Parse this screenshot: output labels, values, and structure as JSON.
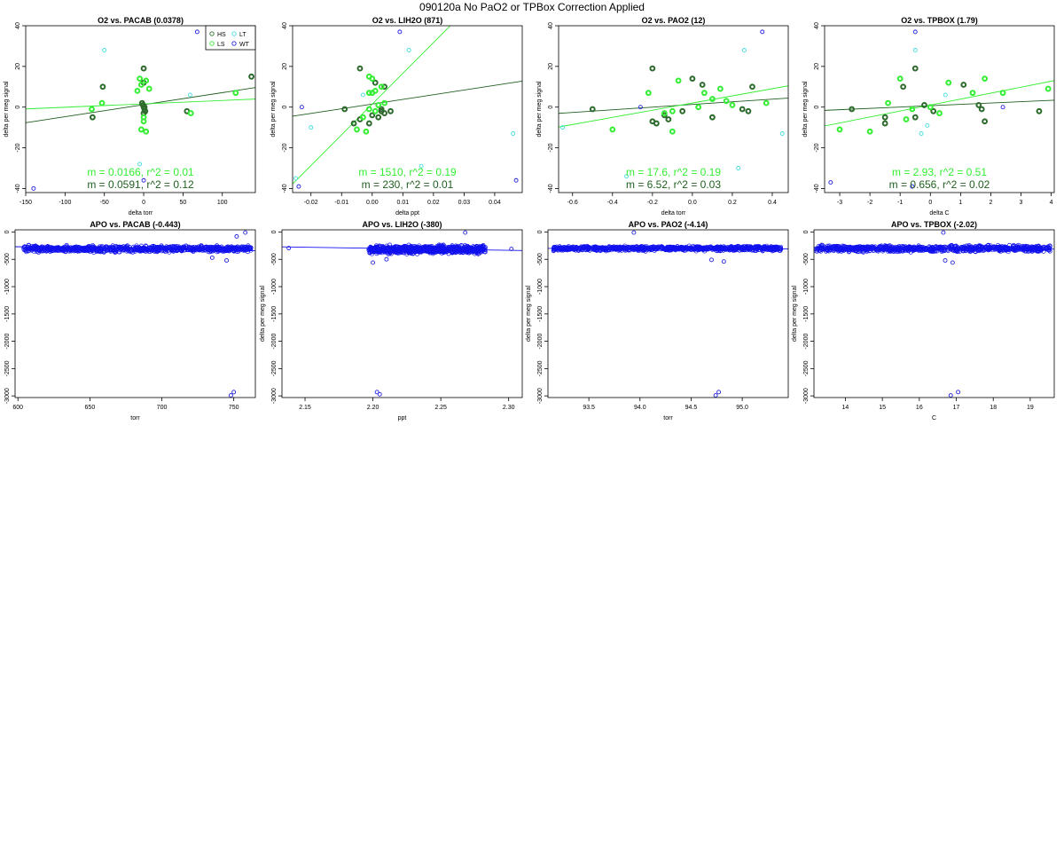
{
  "page": {
    "title": "090120a   No PaO2 or TPBox Correction Applied"
  },
  "colors": {
    "HS": "#2d6b2d",
    "LS": "#33ee33",
    "LT": "#44dddd",
    "WT": "#2222dd",
    "fit_dark": "#1f5f1f",
    "fit_light": "#33ee33",
    "apo": "#1111ee"
  },
  "legend": [
    {
      "label": "HS",
      "color_key": "HS",
      "position": "top-left"
    },
    {
      "label": "LT",
      "color_key": "LT",
      "position": "top-right"
    },
    {
      "label": "LS",
      "color_key": "LS",
      "position": "bottom-left"
    },
    {
      "label": "WT",
      "color_key": "WT",
      "position": "bottom-right"
    }
  ],
  "chart_data": [
    {
      "type": "scatter",
      "title": "O2 vs. PACAB (0.0378)",
      "xlabel": "delta torr",
      "ylabel": "delta per meg signal",
      "xlim": [
        -150,
        142
      ],
      "ylim": [
        -42,
        40
      ],
      "grid": false,
      "legend": "top-right",
      "xticks": [
        -150,
        -100,
        -50,
        0,
        50,
        100
      ],
      "yticks": [
        -40,
        -20,
        0,
        20,
        40
      ],
      "fits": [
        {
          "slope": 0.0591,
          "intercept": 1.2,
          "color_key": "fit_dark",
          "label": "m = 0.0591, r^2 = 0.12"
        },
        {
          "slope": 0.0166,
          "intercept": 1.6,
          "color_key": "fit_light",
          "label": "m = 0.0166, r^2 = 0.01"
        }
      ],
      "series": [
        {
          "key": "HS",
          "bold": true,
          "points": [
            [
              -65,
              -5
            ],
            [
              -52,
              10
            ],
            [
              0,
              19
            ],
            [
              0,
              12
            ],
            [
              -2,
              2
            ],
            [
              0,
              0
            ],
            [
              1,
              -1
            ],
            [
              0,
              -3
            ],
            [
              2,
              -2
            ],
            [
              55,
              -2
            ],
            [
              137,
              15
            ],
            [
              -1,
              1
            ],
            [
              1,
              0
            ]
          ]
        },
        {
          "key": "LS",
          "bold": true,
          "points": [
            [
              -66,
              -1
            ],
            [
              -5,
              14
            ],
            [
              3,
              13
            ],
            [
              7,
              9
            ],
            [
              -8,
              8
            ],
            [
              0,
              -5
            ],
            [
              0,
              -7
            ],
            [
              -3,
              -11
            ],
            [
              3,
              -12
            ],
            [
              60,
              -3
            ],
            [
              117,
              7
            ],
            [
              -53,
              2
            ],
            [
              -3,
              11
            ]
          ]
        },
        {
          "key": "LT",
          "bold": false,
          "points": [
            [
              -50,
              28
            ],
            [
              59,
              6
            ],
            [
              -5,
              -28
            ]
          ]
        },
        {
          "key": "WT",
          "bold": false,
          "points": [
            [
              -140,
              -40
            ],
            [
              68,
              37
            ],
            [
              0,
              -36
            ]
          ]
        }
      ]
    },
    {
      "type": "scatter",
      "title": "O2 vs. LIH2O (871)",
      "xlabel": "delta ppt",
      "ylabel": "delta per meg signal",
      "xlim": [
        -0.026,
        0.049
      ],
      "ylim": [
        -42,
        40
      ],
      "grid": false,
      "xticks": [
        -0.02,
        -0.01,
        0.0,
        0.01,
        0.02,
        0.03,
        0.04
      ],
      "yticks": [
        -40,
        -20,
        0,
        20,
        40
      ],
      "fits": [
        {
          "slope": 230,
          "intercept": 1.5,
          "color_key": "fit_dark",
          "label": "m = 230, r^2 = 0.01"
        },
        {
          "slope": 1510,
          "intercept": 1.5,
          "color_key": "fit_light",
          "label": "m = 1510, r^2 = 0.19"
        }
      ],
      "series": [
        {
          "key": "HS",
          "bold": true,
          "points": [
            [
              -0.004,
              19
            ],
            [
              -0.009,
              -1
            ],
            [
              -0.006,
              -8
            ],
            [
              -0.004,
              -6
            ],
            [
              -0.001,
              -8
            ],
            [
              0.002,
              -5
            ],
            [
              0.003,
              -2
            ],
            [
              0.004,
              10
            ],
            [
              0.001,
              12
            ],
            [
              0.003,
              -1
            ],
            [
              0.0,
              -4
            ],
            [
              0.004,
              -3
            ],
            [
              0.006,
              -2
            ]
          ]
        },
        {
          "key": "LS",
          "bold": true,
          "points": [
            [
              -0.005,
              -11
            ],
            [
              -0.002,
              -12
            ],
            [
              0.0,
              14
            ],
            [
              -0.001,
              15
            ],
            [
              0.001,
              8
            ],
            [
              -0.001,
              7
            ],
            [
              0.002,
              1
            ],
            [
              0.004,
              2
            ],
            [
              0.001,
              -2
            ],
            [
              -0.001,
              -1
            ],
            [
              0.003,
              10
            ],
            [
              -0.003,
              -5
            ],
            [
              0.0,
              7
            ]
          ]
        },
        {
          "key": "LT",
          "bold": false,
          "points": [
            [
              -0.025,
              -35
            ],
            [
              -0.02,
              -10
            ],
            [
              0.012,
              28
            ],
            [
              0.046,
              -13
            ],
            [
              -0.003,
              6
            ],
            [
              0.016,
              -29
            ]
          ]
        },
        {
          "key": "WT",
          "bold": false,
          "points": [
            [
              -0.024,
              -39
            ],
            [
              -0.023,
              0
            ],
            [
              0.009,
              37
            ],
            [
              0.047,
              -36
            ]
          ]
        }
      ]
    },
    {
      "type": "scatter",
      "title": "O2 vs. PAO2 (12)",
      "xlabel": "delta torr",
      "ylabel": "delta per meg signal",
      "xlim": [
        -0.67,
        0.48
      ],
      "ylim": [
        -42,
        40
      ],
      "grid": false,
      "xticks": [
        -0.6,
        -0.4,
        -0.2,
        0.0,
        0.2,
        0.4
      ],
      "yticks": [
        -40,
        -20,
        0,
        20,
        40
      ],
      "fits": [
        {
          "slope": 6.52,
          "intercept": 1.3,
          "color_key": "fit_dark",
          "label": "m = 6.52, r^2 = 0.03"
        },
        {
          "slope": 17.6,
          "intercept": 2.0,
          "color_key": "fit_light",
          "label": "m = 17.6, r^2 = 0.19"
        }
      ],
      "series": [
        {
          "key": "HS",
          "bold": true,
          "points": [
            [
              -0.5,
              -1
            ],
            [
              -0.2,
              19
            ],
            [
              -0.2,
              -7
            ],
            [
              -0.18,
              -8
            ],
            [
              -0.12,
              -6
            ],
            [
              -0.05,
              -2
            ],
            [
              0.0,
              14
            ],
            [
              0.05,
              11
            ],
            [
              0.1,
              -5
            ],
            [
              0.25,
              -1
            ],
            [
              0.3,
              10
            ],
            [
              0.28,
              -2
            ],
            [
              -0.14,
              -4
            ]
          ]
        },
        {
          "key": "LS",
          "bold": true,
          "points": [
            [
              -0.4,
              -11
            ],
            [
              -0.22,
              7
            ],
            [
              -0.14,
              -3
            ],
            [
              -0.1,
              -12
            ],
            [
              -0.07,
              13
            ],
            [
              0.03,
              0
            ],
            [
              0.06,
              7
            ],
            [
              0.1,
              4
            ],
            [
              0.14,
              9
            ],
            [
              0.17,
              3
            ],
            [
              0.2,
              1
            ],
            [
              0.37,
              2
            ],
            [
              -0.1,
              -2
            ]
          ]
        },
        {
          "key": "LT",
          "bold": false,
          "points": [
            [
              -0.65,
              -10
            ],
            [
              -0.33,
              -34
            ],
            [
              0.26,
              28
            ],
            [
              0.45,
              -13
            ],
            [
              0.23,
              -30
            ]
          ]
        },
        {
          "key": "WT",
          "bold": false,
          "points": [
            [
              -0.26,
              0
            ],
            [
              0.35,
              37
            ]
          ]
        }
      ]
    },
    {
      "type": "scatter",
      "title": "O2 vs. TPBOX (1.79)",
      "xlabel": "delta C",
      "ylabel": "delta per meg signal",
      "xlim": [
        -3.5,
        4.1
      ],
      "ylim": [
        -42,
        40
      ],
      "grid": false,
      "xticks": [
        -3,
        -2,
        -1,
        0,
        1,
        2,
        3,
        4
      ],
      "yticks": [
        -40,
        -20,
        0,
        20,
        40
      ],
      "fits": [
        {
          "slope": 0.656,
          "intercept": 0.7,
          "color_key": "fit_dark",
          "label": "m = 0.656, r^2 = 0.02"
        },
        {
          "slope": 2.93,
          "intercept": 1.0,
          "color_key": "fit_light",
          "label": "m = 2.93, r^2 = 0.51"
        }
      ],
      "series": [
        {
          "key": "HS",
          "bold": true,
          "points": [
            [
              -2.6,
              -1
            ],
            [
              -1.5,
              -8
            ],
            [
              -1.5,
              -5
            ],
            [
              -0.9,
              10
            ],
            [
              -0.5,
              19
            ],
            [
              -0.5,
              -5
            ],
            [
              -0.2,
              1
            ],
            [
              0.1,
              -2
            ],
            [
              1.1,
              11
            ],
            [
              1.6,
              1
            ],
            [
              1.8,
              -7
            ],
            [
              3.6,
              -2
            ],
            [
              1.7,
              -1
            ]
          ]
        },
        {
          "key": "LS",
          "bold": true,
          "points": [
            [
              -3.0,
              -11
            ],
            [
              -2.0,
              -12
            ],
            [
              -1.4,
              2
            ],
            [
              -1.0,
              14
            ],
            [
              -0.6,
              -1
            ],
            [
              0.3,
              -3
            ],
            [
              0.6,
              12
            ],
            [
              1.4,
              7
            ],
            [
              1.8,
              14
            ],
            [
              2.4,
              7
            ],
            [
              3.9,
              9
            ],
            [
              -0.8,
              -6
            ],
            [
              0.0,
              0
            ]
          ]
        },
        {
          "key": "LT",
          "bold": false,
          "points": [
            [
              -0.5,
              28
            ],
            [
              -0.3,
              -13
            ],
            [
              0.5,
              6
            ],
            [
              -0.1,
              -9
            ]
          ]
        },
        {
          "key": "WT",
          "bold": false,
          "points": [
            [
              -3.3,
              -37
            ],
            [
              -0.5,
              37
            ],
            [
              2.4,
              0
            ],
            [
              -0.6,
              -39
            ]
          ]
        }
      ]
    },
    {
      "type": "scatter",
      "title": "APO vs. PACAB (-0.443)",
      "xlabel": "torr",
      "ylabel": "delta per meg signal",
      "xlim": [
        598,
        765
      ],
      "ylim": [
        -3030,
        40
      ],
      "grid": false,
      "xticks": [
        600,
        650,
        700,
        750
      ],
      "yticks": [
        0,
        -500,
        -1000,
        -1500,
        -2000,
        -2500,
        -3000
      ],
      "fits": [
        {
          "slope": -0.443,
          "intercept": 0,
          "anchor_x": 680,
          "anchor_y": -305,
          "color_key": "apo"
        }
      ],
      "band": {
        "x_range": [
          604,
          762
        ],
        "y_center": -310,
        "y_spread": 75
      },
      "series": [
        {
          "key": "WT",
          "bold": false,
          "points": [
            [
              748,
              -2990
            ],
            [
              750,
              -2930
            ],
            [
              758,
              -10
            ],
            [
              752,
              -80
            ],
            [
              745,
              -520
            ],
            [
              735,
              -470
            ]
          ]
        }
      ]
    },
    {
      "type": "scatter",
      "title": "APO vs. LIH2O (-380)",
      "xlabel": "ppt",
      "ylabel": "delta per meg signal",
      "xlim": [
        2.133,
        2.31
      ],
      "ylim": [
        -3030,
        40
      ],
      "grid": false,
      "xticks": [
        2.15,
        2.2,
        2.25,
        2.3
      ],
      "yticks": [
        0,
        -500,
        -1000,
        -1500,
        -2000,
        -2500,
        -3000
      ],
      "fits": [
        {
          "slope": -380,
          "intercept": 0,
          "anchor_x": 2.22,
          "anchor_y": -305,
          "color_key": "apo"
        }
      ],
      "band": {
        "x_range": [
          2.197,
          2.283
        ],
        "y_center": -320,
        "y_spread": 95
      },
      "series": [
        {
          "key": "WT",
          "bold": false,
          "points": [
            [
              2.138,
              -295
            ],
            [
              2.203,
              -2930
            ],
            [
              2.205,
              -2970
            ],
            [
              2.268,
              -10
            ],
            [
              2.302,
              -310
            ],
            [
              2.2,
              -560
            ],
            [
              2.21,
              -500
            ]
          ]
        }
      ]
    },
    {
      "type": "scatter",
      "title": "APO vs. PAO2 (-4.14)",
      "xlabel": "torr",
      "ylabel": "delta per meg signal",
      "xlim": [
        93.1,
        95.45
      ],
      "ylim": [
        -3030,
        40
      ],
      "grid": false,
      "xticks": [
        93.5,
        94.0,
        94.5,
        95.0
      ],
      "yticks": [
        0,
        -500,
        -1000,
        -1500,
        -2000,
        -2500,
        -3000
      ],
      "fits": [
        {
          "slope": -4.14,
          "intercept": 0,
          "anchor_x": 94.3,
          "anchor_y": -305,
          "color_key": "apo"
        }
      ],
      "band": {
        "x_range": [
          93.15,
          95.38
        ],
        "y_center": -300,
        "y_spread": 55
      },
      "series": [
        {
          "key": "WT",
          "bold": false,
          "points": [
            [
              94.74,
              -2990
            ],
            [
              94.77,
              -2930
            ],
            [
              93.94,
              -10
            ],
            [
              94.82,
              -540
            ],
            [
              94.7,
              -510
            ]
          ]
        }
      ]
    },
    {
      "type": "scatter",
      "title": "APO vs. TPBOX (-2.02)",
      "xlabel": "C",
      "ylabel": "delta per meg signal",
      "xlim": [
        13.15,
        19.65
      ],
      "ylim": [
        -3030,
        40
      ],
      "grid": false,
      "xticks": [
        14,
        15,
        16,
        17,
        18,
        19
      ],
      "yticks": [
        0,
        -500,
        -1000,
        -1500,
        -2000,
        -2500,
        -3000
      ],
      "fits": [
        {
          "slope": -2.02,
          "intercept": 0,
          "anchor_x": 16,
          "anchor_y": -305,
          "color_key": "apo"
        }
      ],
      "band": {
        "x_range": [
          13.2,
          19.55
        ],
        "y_center": -305,
        "y_spread": 75
      },
      "series": [
        {
          "key": "WT",
          "bold": false,
          "points": [
            [
              16.85,
              -2990
            ],
            [
              17.05,
              -2930
            ],
            [
              16.65,
              -10
            ],
            [
              16.9,
              -560
            ],
            [
              16.7,
              -520
            ]
          ]
        }
      ]
    }
  ]
}
